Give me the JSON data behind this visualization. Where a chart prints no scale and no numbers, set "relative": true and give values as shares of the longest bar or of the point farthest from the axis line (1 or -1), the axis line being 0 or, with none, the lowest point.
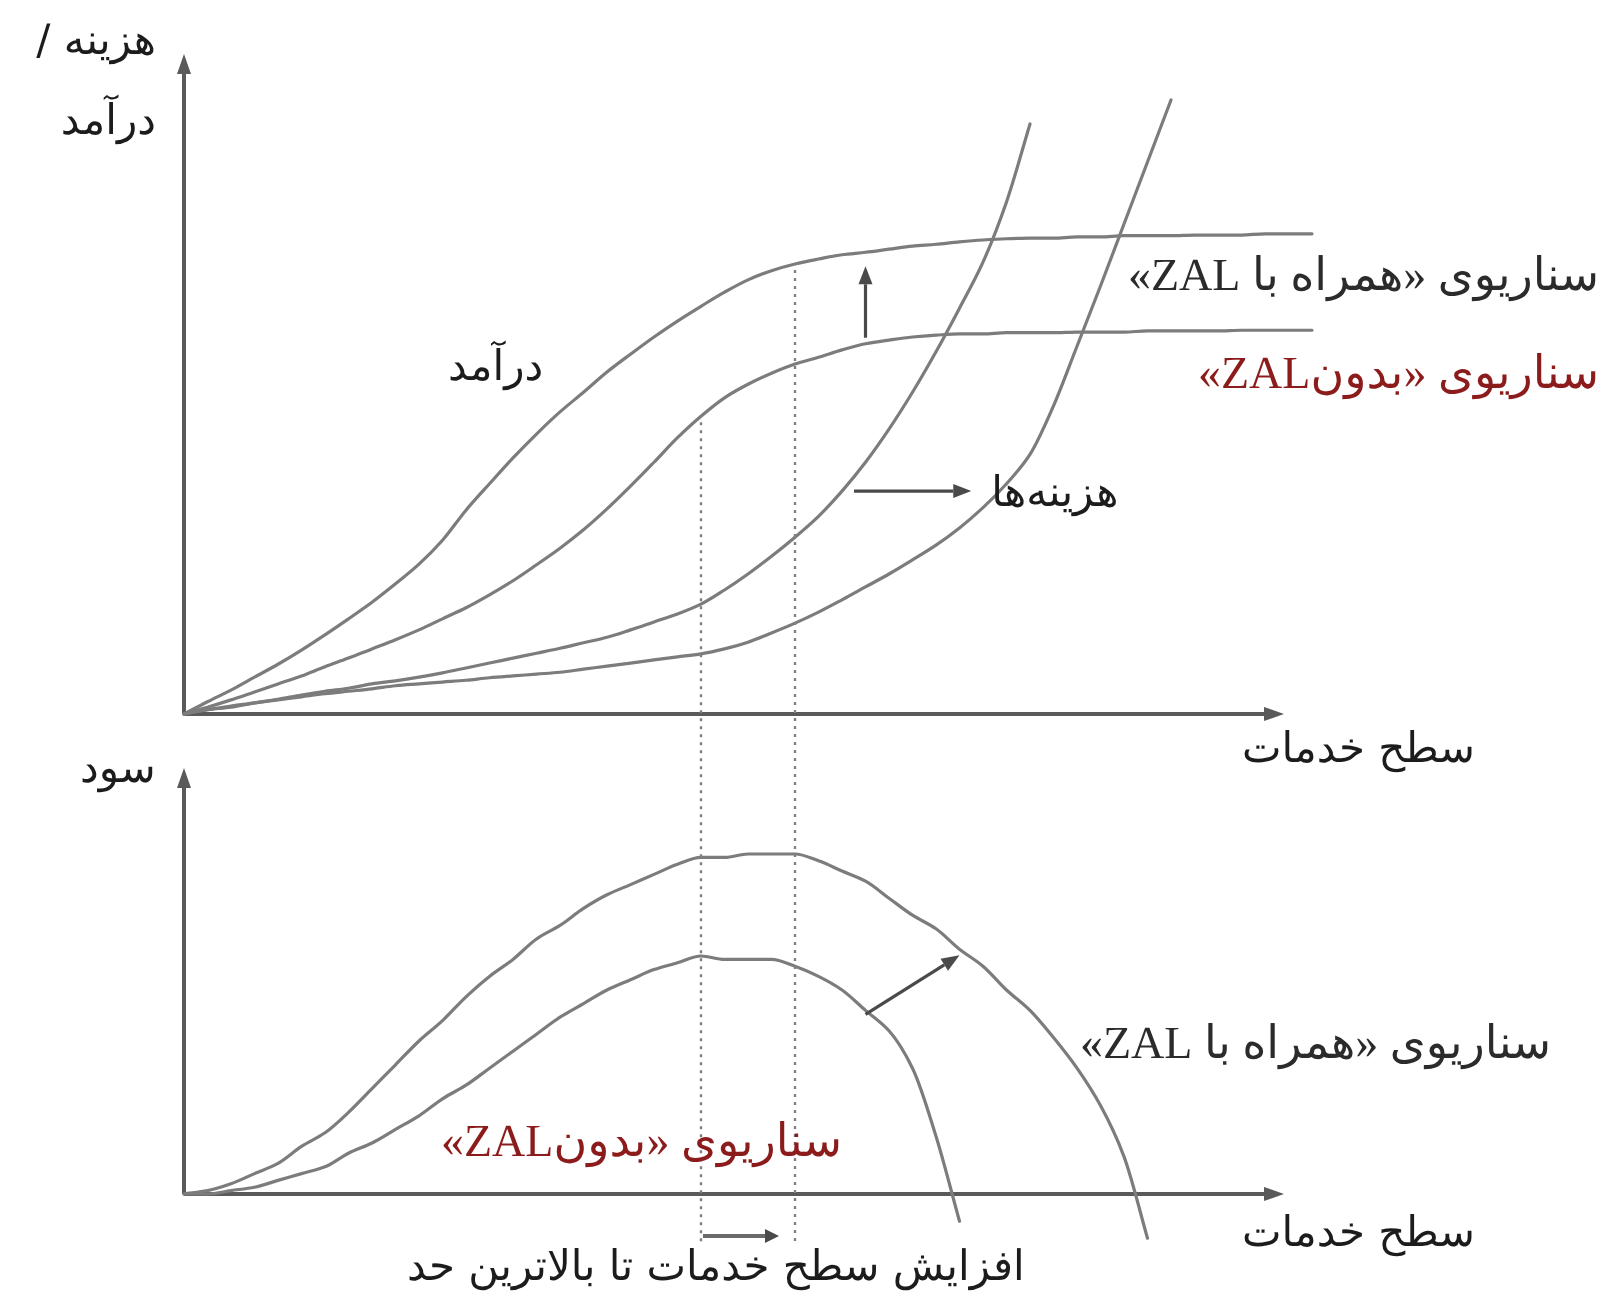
{
  "chart_data": [
    {
      "type": "line",
      "relative": true,
      "ylabel": "هزینه / درآمد",
      "xlabel": "سطح خدمات",
      "categories": [
        null,
        null,
        null,
        null,
        null,
        null,
        null,
        null,
        null,
        null,
        null,
        null,
        null,
        null,
        null,
        null,
        null,
        null,
        null,
        null,
        null,
        null,
        null,
        null,
        null,
        null,
        null,
        null,
        null,
        null,
        null,
        null,
        null,
        null,
        null,
        null,
        null,
        null,
        null,
        null,
        null,
        null,
        null,
        null,
        null,
        null,
        null,
        null,
        null
      ],
      "series": [
        {
          "name": "سناریوی «همراه با ZAL»",
          "color": "#7c7c7c",
          "values": [
            0,
            0.02,
            0.039,
            0.06,
            0.081,
            0.104,
            0.129,
            0.155,
            0.182,
            0.212,
            0.244,
            0.283,
            0.332,
            0.375,
            0.417,
            0.456,
            0.492,
            0.524,
            0.557,
            0.586,
            0.614,
            0.64,
            0.664,
            0.687,
            0.707,
            0.722,
            0.733,
            0.741,
            0.748,
            0.752,
            0.757,
            0.762,
            0.765,
            0.769,
            0.772,
            0.774,
            0.775,
            0.775,
            0.777,
            0.777,
            0.779,
            0.779,
            0.779,
            0.78,
            0.78,
            0.78,
            0.782,
            0.782,
            0.782
          ]
        },
        {
          "name": "سناریوی «بدونZAL»",
          "color": "#7c7c7c",
          "values": [
            0,
            0.011,
            0.023,
            0.036,
            0.049,
            0.062,
            0.077,
            0.091,
            0.106,
            0.121,
            0.137,
            0.155,
            0.173,
            0.194,
            0.217,
            0.243,
            0.27,
            0.3,
            0.334,
            0.371,
            0.41,
            0.45,
            0.485,
            0.515,
            0.537,
            0.555,
            0.57,
            0.581,
            0.593,
            0.603,
            0.609,
            0.614,
            0.617,
            0.619,
            0.619,
            0.621,
            0.621,
            0.621,
            0.622,
            0.622,
            0.622,
            0.624,
            0.624,
            0.624,
            0.624,
            0.625,
            0.625,
            0.625,
            0.625
          ]
        },
        {
          "color": "#7c7c7c",
          "values": [
            0,
            0.007,
            0.011,
            0.018,
            0.024,
            0.031,
            0.037,
            0.042,
            0.049,
            0.054,
            0.06,
            0.067,
            0.075,
            0.083,
            0.091,
            0.099,
            0.107,
            0.116,
            0.125,
            0.137,
            0.15,
            0.163,
            0.179,
            0.202,
            0.228,
            0.257,
            0.288,
            0.322,
            0.363,
            0.41,
            0.464,
            0.524,
            0.59,
            0.661,
            0.736,
            0.834,
            0.961,
            null,
            null,
            null,
            null,
            null,
            null,
            null,
            null,
            null,
            null,
            null,
            null
          ]
        },
        {
          "color": "#7c7c7c",
          "values": [
            0,
            0.007,
            0.013,
            0.018,
            0.023,
            0.028,
            0.033,
            0.037,
            0.041,
            0.046,
            0.049,
            0.052,
            0.055,
            0.059,
            0.062,
            0.065,
            0.068,
            0.073,
            0.078,
            0.083,
            0.088,
            0.093,
            0.098,
            0.106,
            0.117,
            0.132,
            0.148,
            0.166,
            0.186,
            0.207,
            0.228,
            0.251,
            0.275,
            0.303,
            0.336,
            0.375,
            0.423,
            0.502,
            0.599,
            0.697,
            0.798,
            0.899,
            1.0,
            null,
            null,
            null,
            null,
            null,
            null
          ]
        }
      ],
      "annotations": [
        "درآمد",
        "هزینه‌ها"
      ]
    },
    {
      "type": "line",
      "relative": true,
      "ylabel": "سود",
      "xlabel": "سطح خدمات",
      "categories": [
        null,
        null,
        null,
        null,
        null,
        null,
        null,
        null,
        null,
        null,
        null,
        null,
        null,
        null,
        null,
        null,
        null,
        null,
        null,
        null,
        null,
        null,
        null,
        null,
        null,
        null,
        null,
        null,
        null,
        null,
        null,
        null,
        null,
        null,
        null,
        null,
        null,
        null,
        null,
        null,
        null,
        null,
        null,
        null,
        null,
        null,
        null,
        null,
        null
      ],
      "series": [
        {
          "name": "سناریوی «همراه با ZAL»",
          "color": "#7c7c7c",
          "values": [
            0,
            0.01,
            0.03,
            0.06,
            0.09,
            0.14,
            0.18,
            0.24,
            0.31,
            0.38,
            0.45,
            0.51,
            0.58,
            0.64,
            0.69,
            0.75,
            0.79,
            0.84,
            0.88,
            0.91,
            0.94,
            0.97,
            0.99,
            0.99,
            1.0,
            1.0,
            1.0,
            0.98,
            0.95,
            0.92,
            0.87,
            0.82,
            0.78,
            0.72,
            0.67,
            0.6,
            0.54,
            0.46,
            0.37,
            0.26,
            0.11,
            -0.13,
            null,
            null,
            null,
            null,
            null,
            null,
            null
          ]
        },
        {
          "name": "سناریوی «بدونZAL»",
          "color": "#7c7c7c",
          "values": [
            0,
            0,
            0.01,
            0.02,
            0.04,
            0.06,
            0.08,
            0.12,
            0.15,
            0.19,
            0.23,
            0.28,
            0.32,
            0.37,
            0.42,
            0.47,
            0.52,
            0.56,
            0.6,
            0.63,
            0.66,
            0.68,
            0.7,
            0.69,
            0.69,
            0.69,
            0.67,
            0.64,
            0.6,
            0.54,
            0.48,
            0.37,
            0.17,
            -0.08,
            null,
            null,
            null,
            null,
            null,
            null,
            null,
            null,
            null,
            null,
            null,
            null,
            null,
            null,
            null
          ]
        }
      ],
      "annotations": [
        "افزایش سطح خدمات تا بالاترین حد"
      ]
    }
  ]
}
